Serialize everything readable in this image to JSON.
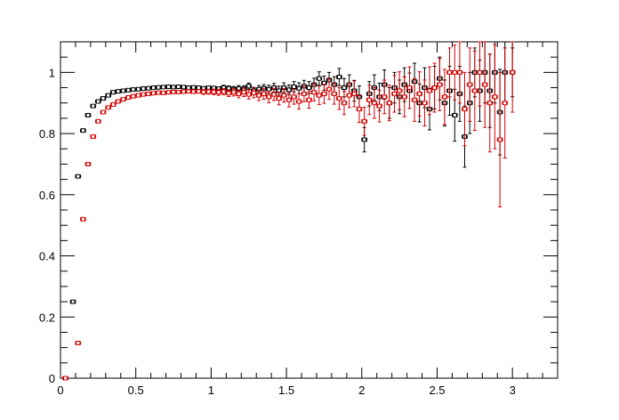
{
  "chart_data": {
    "type": "scatter",
    "title": "",
    "xlabel": "",
    "ylabel": "",
    "xlim": [
      0,
      3.3
    ],
    "ylim": [
      0,
      1.1
    ],
    "x_ticks": [
      0,
      0.5,
      1,
      1.5,
      2,
      2.5,
      3
    ],
    "x_tick_labels": [
      "0",
      "0.5",
      "1",
      "1.5",
      "2",
      "2.5",
      "3"
    ],
    "y_ticks": [
      0,
      0.2,
      0.4,
      0.6,
      0.8,
      1
    ],
    "y_tick_labels": [
      "0",
      "0.2",
      "0.4",
      "0.6",
      "0.8",
      "1"
    ],
    "grid": false,
    "legend": "none",
    "x_bin_halfwidth": 0.0167,
    "series": [
      {
        "color": "#000000",
        "marker": "open-square",
        "points": [
          [
            0.033,
            0.0,
            0.003
          ],
          [
            0.083,
            0.25,
            0.005
          ],
          [
            0.117,
            0.66,
            0.005
          ],
          [
            0.15,
            0.81,
            0.005
          ],
          [
            0.183,
            0.86,
            0.005
          ],
          [
            0.217,
            0.89,
            0.005
          ],
          [
            0.25,
            0.905,
            0.005
          ],
          [
            0.283,
            0.915,
            0.005
          ],
          [
            0.317,
            0.925,
            0.005
          ],
          [
            0.35,
            0.935,
            0.005
          ],
          [
            0.383,
            0.938,
            0.005
          ],
          [
            0.417,
            0.94,
            0.005
          ],
          [
            0.45,
            0.942,
            0.005
          ],
          [
            0.483,
            0.944,
            0.005
          ],
          [
            0.517,
            0.945,
            0.005
          ],
          [
            0.55,
            0.947,
            0.005
          ],
          [
            0.583,
            0.948,
            0.005
          ],
          [
            0.617,
            0.95,
            0.005
          ],
          [
            0.65,
            0.951,
            0.005
          ],
          [
            0.683,
            0.952,
            0.005
          ],
          [
            0.717,
            0.953,
            0.005
          ],
          [
            0.75,
            0.952,
            0.005
          ],
          [
            0.783,
            0.953,
            0.005
          ],
          [
            0.817,
            0.952,
            0.005
          ],
          [
            0.85,
            0.95,
            0.006
          ],
          [
            0.883,
            0.951,
            0.006
          ],
          [
            0.917,
            0.95,
            0.006
          ],
          [
            0.95,
            0.948,
            0.006
          ],
          [
            0.983,
            0.95,
            0.006
          ],
          [
            1.017,
            0.949,
            0.007
          ],
          [
            1.05,
            0.947,
            0.007
          ],
          [
            1.083,
            0.95,
            0.008
          ],
          [
            1.117,
            0.948,
            0.008
          ],
          [
            1.15,
            0.945,
            0.009
          ],
          [
            1.183,
            0.947,
            0.01
          ],
          [
            1.217,
            0.946,
            0.01
          ],
          [
            1.25,
            0.955,
            0.01
          ],
          [
            1.283,
            0.94,
            0.011
          ],
          [
            1.317,
            0.945,
            0.012
          ],
          [
            1.35,
            0.948,
            0.012
          ],
          [
            1.383,
            0.945,
            0.013
          ],
          [
            1.417,
            0.95,
            0.014
          ],
          [
            1.45,
            0.94,
            0.015
          ],
          [
            1.483,
            0.95,
            0.016
          ],
          [
            1.517,
            0.943,
            0.016
          ],
          [
            1.55,
            0.953,
            0.017
          ],
          [
            1.583,
            0.948,
            0.018
          ],
          [
            1.617,
            0.955,
            0.019
          ],
          [
            1.65,
            0.95,
            0.02
          ],
          [
            1.683,
            0.96,
            0.021
          ],
          [
            1.717,
            0.98,
            0.022
          ],
          [
            1.75,
            0.965,
            0.023
          ],
          [
            1.783,
            0.975,
            0.025
          ],
          [
            1.817,
            0.96,
            0.026
          ],
          [
            1.85,
            0.985,
            0.028
          ],
          [
            1.883,
            0.95,
            0.03
          ],
          [
            1.917,
            0.96,
            0.032
          ],
          [
            1.95,
            0.94,
            0.034
          ],
          [
            1.983,
            0.92,
            0.036
          ],
          [
            2.017,
            0.78,
            0.04
          ],
          [
            2.05,
            0.93,
            0.04
          ],
          [
            2.083,
            0.95,
            0.042
          ],
          [
            2.117,
            0.92,
            0.045
          ],
          [
            2.15,
            0.96,
            0.048
          ],
          [
            2.183,
            0.9,
            0.05
          ],
          [
            2.217,
            0.95,
            0.05
          ],
          [
            2.25,
            0.92,
            0.055
          ],
          [
            2.283,
            0.96,
            0.055
          ],
          [
            2.317,
            0.94,
            0.058
          ],
          [
            2.35,
            0.97,
            0.06
          ],
          [
            2.383,
            0.9,
            0.062
          ],
          [
            2.417,
            0.95,
            0.065
          ],
          [
            2.45,
            0.88,
            0.068
          ],
          [
            2.483,
            0.95,
            0.07
          ],
          [
            2.517,
            0.98,
            0.07
          ],
          [
            2.55,
            0.9,
            0.075
          ],
          [
            2.583,
            0.94,
            0.08
          ],
          [
            2.617,
            0.86,
            0.085
          ],
          [
            2.65,
            0.93,
            0.09
          ],
          [
            2.683,
            0.79,
            0.1
          ],
          [
            2.717,
            0.9,
            0.1
          ],
          [
            2.75,
            1.0,
            0.08
          ],
          [
            2.783,
            0.94,
            0.1
          ],
          [
            2.817,
            1.0,
            0.1
          ],
          [
            2.85,
            0.94,
            0.12
          ],
          [
            2.883,
            1.0,
            0.1
          ],
          [
            2.917,
            0.87,
            0.14
          ],
          [
            2.95,
            1.0,
            0.1
          ],
          [
            3.0,
            1.0,
            0.08
          ]
        ]
      },
      {
        "color": "#d40000",
        "marker": "open-square",
        "points": [
          [
            0.033,
            0.0,
            0.003
          ],
          [
            0.117,
            0.115,
            0.005
          ],
          [
            0.15,
            0.52,
            0.005
          ],
          [
            0.183,
            0.7,
            0.005
          ],
          [
            0.217,
            0.79,
            0.005
          ],
          [
            0.25,
            0.84,
            0.005
          ],
          [
            0.283,
            0.87,
            0.005
          ],
          [
            0.317,
            0.885,
            0.005
          ],
          [
            0.35,
            0.895,
            0.005
          ],
          [
            0.383,
            0.905,
            0.005
          ],
          [
            0.417,
            0.912,
            0.005
          ],
          [
            0.45,
            0.918,
            0.005
          ],
          [
            0.483,
            0.922,
            0.005
          ],
          [
            0.517,
            0.925,
            0.005
          ],
          [
            0.55,
            0.928,
            0.005
          ],
          [
            0.583,
            0.93,
            0.005
          ],
          [
            0.617,
            0.932,
            0.005
          ],
          [
            0.65,
            0.934,
            0.005
          ],
          [
            0.683,
            0.933,
            0.006
          ],
          [
            0.717,
            0.935,
            0.006
          ],
          [
            0.75,
            0.936,
            0.006
          ],
          [
            0.783,
            0.936,
            0.006
          ],
          [
            0.817,
            0.937,
            0.006
          ],
          [
            0.85,
            0.938,
            0.007
          ],
          [
            0.883,
            0.937,
            0.007
          ],
          [
            0.917,
            0.938,
            0.007
          ],
          [
            0.95,
            0.936,
            0.008
          ],
          [
            0.983,
            0.937,
            0.008
          ],
          [
            1.017,
            0.936,
            0.009
          ],
          [
            1.05,
            0.935,
            0.01
          ],
          [
            1.083,
            0.937,
            0.01
          ],
          [
            1.117,
            0.932,
            0.011
          ],
          [
            1.15,
            0.935,
            0.012
          ],
          [
            1.183,
            0.93,
            0.013
          ],
          [
            1.217,
            0.935,
            0.014
          ],
          [
            1.25,
            0.928,
            0.015
          ],
          [
            1.283,
            0.933,
            0.016
          ],
          [
            1.317,
            0.925,
            0.017
          ],
          [
            1.35,
            0.93,
            0.018
          ],
          [
            1.383,
            0.92,
            0.019
          ],
          [
            1.417,
            0.928,
            0.02
          ],
          [
            1.45,
            0.915,
            0.021
          ],
          [
            1.483,
            0.925,
            0.022
          ],
          [
            1.517,
            0.91,
            0.023
          ],
          [
            1.55,
            0.92,
            0.024
          ],
          [
            1.583,
            0.905,
            0.025
          ],
          [
            1.617,
            0.93,
            0.026
          ],
          [
            1.65,
            0.91,
            0.027
          ],
          [
            1.683,
            0.935,
            0.028
          ],
          [
            1.717,
            0.925,
            0.03
          ],
          [
            1.75,
            0.93,
            0.031
          ],
          [
            1.783,
            0.945,
            0.033
          ],
          [
            1.817,
            0.93,
            0.034
          ],
          [
            1.85,
            0.915,
            0.036
          ],
          [
            1.883,
            0.9,
            0.038
          ],
          [
            1.917,
            0.925,
            0.04
          ],
          [
            1.95,
            0.93,
            0.042
          ],
          [
            1.983,
            0.88,
            0.044
          ],
          [
            2.017,
            0.84,
            0.046
          ],
          [
            2.05,
            0.91,
            0.048
          ],
          [
            2.083,
            0.9,
            0.05
          ],
          [
            2.117,
            0.89,
            0.052
          ],
          [
            2.15,
            0.92,
            0.055
          ],
          [
            2.183,
            0.9,
            0.058
          ],
          [
            2.217,
            0.93,
            0.06
          ],
          [
            2.25,
            0.94,
            0.062
          ],
          [
            2.283,
            0.92,
            0.065
          ],
          [
            2.317,
            0.95,
            0.068
          ],
          [
            2.35,
            0.91,
            0.07
          ],
          [
            2.383,
            0.93,
            0.072
          ],
          [
            2.417,
            0.9,
            0.075
          ],
          [
            2.45,
            0.94,
            0.078
          ],
          [
            2.483,
            0.95,
            0.08
          ],
          [
            2.517,
            0.96,
            0.085
          ],
          [
            2.55,
            0.92,
            0.09
          ],
          [
            2.583,
            1.0,
            0.08
          ],
          [
            2.617,
            1.0,
            0.09
          ],
          [
            2.65,
            1.0,
            0.1
          ],
          [
            2.683,
            0.88,
            0.12
          ],
          [
            2.717,
            0.96,
            0.12
          ],
          [
            2.75,
            0.94,
            0.13
          ],
          [
            2.783,
            1.0,
            0.11
          ],
          [
            2.817,
            0.96,
            0.14
          ],
          [
            2.85,
            0.9,
            0.16
          ],
          [
            2.883,
            0.92,
            0.17
          ],
          [
            2.917,
            0.78,
            0.22
          ],
          [
            2.95,
            0.9,
            0.18
          ],
          [
            3.0,
            1.0,
            0.13
          ]
        ]
      }
    ]
  }
}
